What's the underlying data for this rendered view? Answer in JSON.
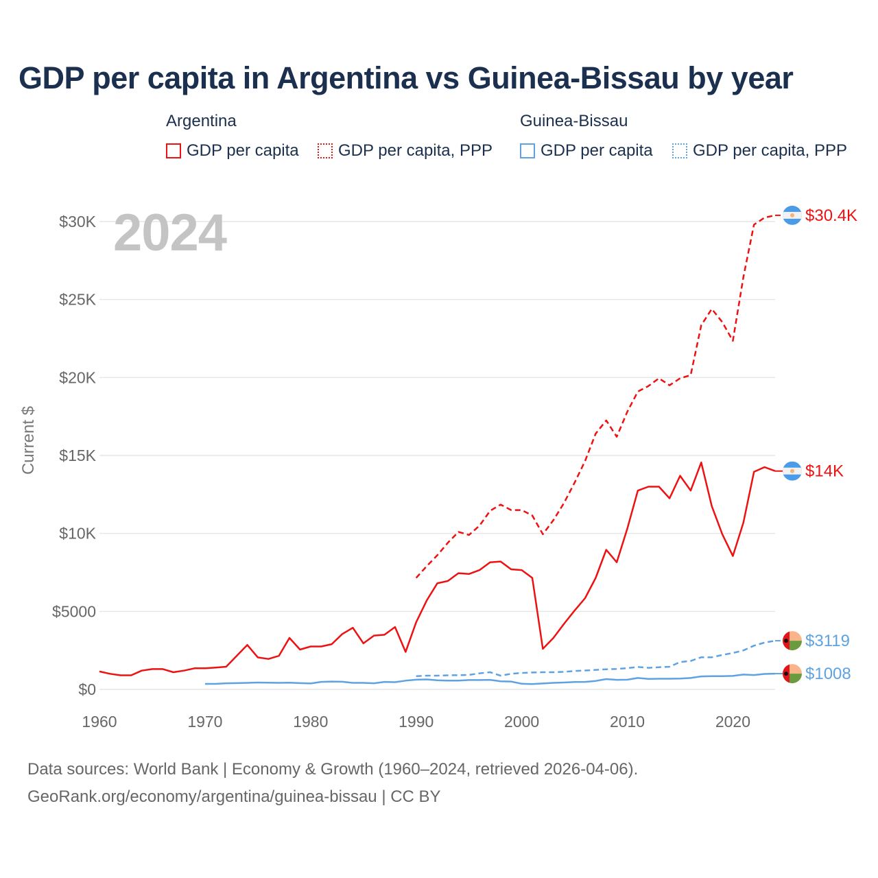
{
  "colors": {
    "argentina": "#ee1111",
    "guinea_bissau": "#5fa2e2",
    "title": "#1b2f4e",
    "grid": "#e6e6e6",
    "axis_text": "#666666",
    "year_watermark": "#c4c4c4"
  },
  "year_watermark": "2024",
  "source": {
    "line1": "Data sources: World Bank | Economy & Growth (1960–2024, retrieved 2026-04-06).",
    "line2": "GeoRank.org/economy/argentina/guinea-bissau | CC BY"
  },
  "chart_data": {
    "type": "line",
    "title": "GDP per capita in Argentina vs Guinea-Bissau by year",
    "ylabel": "Current $",
    "xlabel": "",
    "xlim": [
      1960,
      2024
    ],
    "ylim": [
      0,
      31000
    ],
    "x_ticks": [
      1960,
      1970,
      1980,
      1990,
      2000,
      2010,
      2020
    ],
    "y_ticks": [
      {
        "value": 0,
        "label": "$0"
      },
      {
        "value": 5000,
        "label": "$5000"
      },
      {
        "value": 10000,
        "label": "$10K"
      },
      {
        "value": 15000,
        "label": "$15K"
      },
      {
        "value": 20000,
        "label": "$20K"
      },
      {
        "value": 25000,
        "label": "$25K"
      },
      {
        "value": 30000,
        "label": "$30K"
      }
    ],
    "legend_groups": [
      {
        "country": "Argentina",
        "items": [
          "GDP per capita",
          "GDP per capita, PPP"
        ]
      },
      {
        "country": "Guinea-Bissau",
        "items": [
          "GDP per capita",
          "GDP per capita, PPP"
        ]
      }
    ],
    "series": [
      {
        "name": "Argentina GDP per capita",
        "country": "Argentina",
        "style": "solid",
        "start_year": 1960,
        "end_label": "$14K",
        "values": [
          1150,
          1000,
          900,
          900,
          1200,
          1300,
          1300,
          1100,
          1200,
          1350,
          1350,
          1400,
          1450,
          2150,
          2850,
          2050,
          1950,
          2150,
          3300,
          2550,
          2750,
          2750,
          2900,
          3550,
          3950,
          2950,
          3450,
          3500,
          4000,
          2400,
          4300,
          5700,
          6800,
          6950,
          7450,
          7400,
          7650,
          8150,
          8200,
          7700,
          7650,
          7150,
          2600,
          3300,
          4200,
          5050,
          5850,
          7150,
          8950,
          8150,
          10300,
          12750,
          13000,
          13000,
          12250,
          13700,
          12750,
          14550,
          11750,
          9950,
          8550,
          10700,
          13950,
          14250,
          14000
        ]
      },
      {
        "name": "Argentina GDP per capita, PPP",
        "country": "Argentina",
        "style": "dashed",
        "start_year": 1990,
        "end_label": "$30.4K",
        "values": [
          7150,
          7900,
          8600,
          9400,
          10100,
          9900,
          10500,
          11450,
          11850,
          11500,
          11500,
          11150,
          9950,
          10850,
          11950,
          13250,
          14650,
          16400,
          17250,
          16200,
          17800,
          19100,
          19450,
          19950,
          19500,
          19950,
          20150,
          23350,
          24400,
          23550,
          22350,
          26450,
          29800,
          30250,
          30400
        ]
      },
      {
        "name": "Guinea-Bissau GDP per capita",
        "country": "Guinea-Bissau",
        "style": "solid",
        "start_year": 1970,
        "end_label": "$1008",
        "values": [
          350,
          350,
          390,
          400,
          420,
          440,
          430,
          420,
          430,
          400,
          380,
          480,
          500,
          490,
          420,
          420,
          390,
          480,
          460,
          560,
          620,
          640,
          580,
          560,
          560,
          600,
          600,
          610,
          520,
          500,
          360,
          340,
          380,
          420,
          440,
          470,
          480,
          540,
          660,
          610,
          620,
          730,
          670,
          680,
          680,
          690,
          730,
          830,
          850,
          850,
          860,
          950,
          920,
          990,
          1008
        ]
      },
      {
        "name": "Guinea-Bissau GDP per capita, PPP",
        "country": "Guinea-Bissau",
        "style": "dashed",
        "start_year": 1990,
        "end_label": "$3119",
        "values": [
          850,
          880,
          880,
          900,
          910,
          930,
          1030,
          1100,
          880,
          1000,
          1050,
          1080,
          1100,
          1100,
          1120,
          1180,
          1210,
          1250,
          1290,
          1310,
          1360,
          1440,
          1380,
          1420,
          1450,
          1750,
          1820,
          2060,
          2060,
          2210,
          2330,
          2500,
          2800,
          3000,
          3119
        ]
      }
    ]
  }
}
